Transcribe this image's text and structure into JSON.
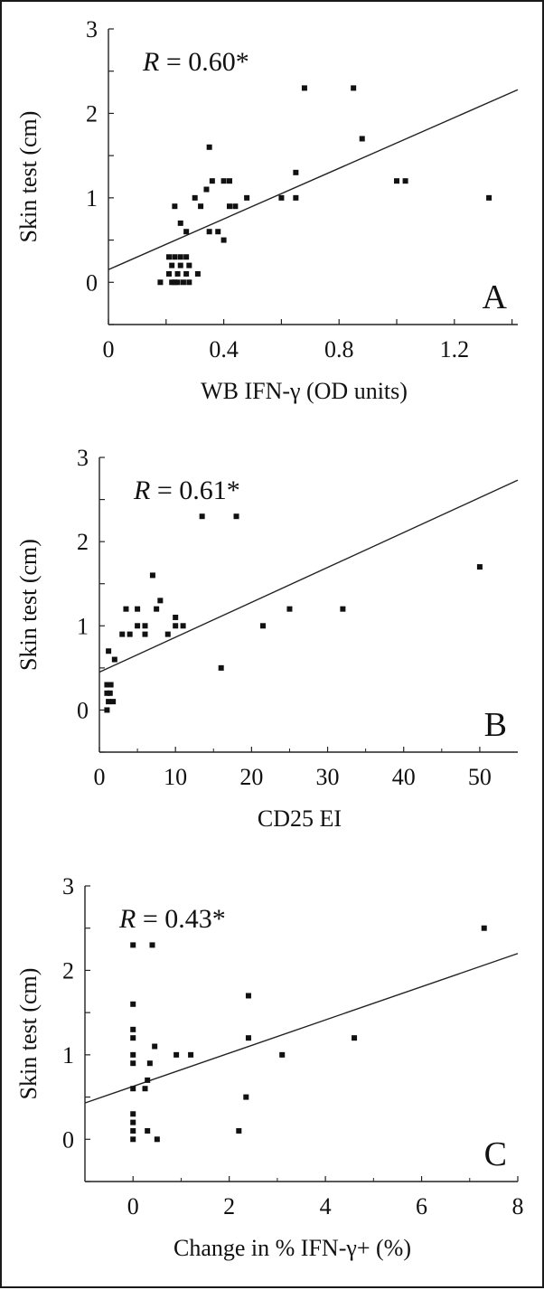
{
  "chart_data": [
    {
      "type": "scatter",
      "panel_label": "A",
      "annotation": {
        "r_symbol": "R",
        "r_value": " = 0.60*"
      },
      "xlabel": "WB IFN-γ (OD units)",
      "ylabel": "Skin test (cm)",
      "xlim": [
        0,
        1.42
      ],
      "ylim": [
        -0.5,
        3
      ],
      "x_ticks": [
        0,
        0.2,
        0.4,
        0.6,
        0.8,
        1.0,
        1.2,
        1.4
      ],
      "x_tick_labels": [
        "0",
        "",
        "0.4",
        "",
        "0.8",
        "",
        "1.2",
        ""
      ],
      "y_ticks": [
        -0.5,
        0,
        0.5,
        1,
        1.5,
        2,
        2.5,
        3
      ],
      "y_tick_labels": [
        "",
        "0",
        "",
        "1",
        "",
        "2",
        "",
        "3"
      ],
      "grid": false,
      "fit_line": {
        "x": [
          0,
          1.42
        ],
        "y": [
          0.15,
          2.28
        ]
      },
      "points": [
        [
          0.18,
          0
        ],
        [
          0.22,
          0
        ],
        [
          0.23,
          0
        ],
        [
          0.24,
          0
        ],
        [
          0.26,
          0
        ],
        [
          0.28,
          0
        ],
        [
          0.21,
          0.1
        ],
        [
          0.24,
          0.1
        ],
        [
          0.27,
          0.1
        ],
        [
          0.31,
          0.1
        ],
        [
          0.22,
          0.2
        ],
        [
          0.25,
          0.2
        ],
        [
          0.28,
          0.2
        ],
        [
          0.21,
          0.3
        ],
        [
          0.23,
          0.3
        ],
        [
          0.25,
          0.3
        ],
        [
          0.27,
          0.3
        ],
        [
          0.25,
          0.7
        ],
        [
          0.27,
          0.6
        ],
        [
          0.23,
          0.9
        ],
        [
          0.3,
          1.0
        ],
        [
          0.32,
          0.9
        ],
        [
          0.34,
          1.1
        ],
        [
          0.35,
          1.6
        ],
        [
          0.36,
          1.2
        ],
        [
          0.35,
          0.6
        ],
        [
          0.38,
          0.6
        ],
        [
          0.4,
          0.5
        ],
        [
          0.4,
          1.2
        ],
        [
          0.42,
          1.2
        ],
        [
          0.42,
          0.9
        ],
        [
          0.44,
          0.9
        ],
        [
          0.48,
          1.0
        ],
        [
          0.6,
          1.0
        ],
        [
          0.65,
          1.0
        ],
        [
          0.65,
          1.3
        ],
        [
          0.68,
          2.3
        ],
        [
          0.85,
          2.3
        ],
        [
          0.88,
          1.7
        ],
        [
          1.0,
          1.2
        ],
        [
          1.03,
          1.2
        ],
        [
          1.32,
          1.0
        ]
      ]
    },
    {
      "type": "scatter",
      "panel_label": "B",
      "annotation": {
        "r_symbol": "R",
        "r_value": " = 0.61*"
      },
      "xlabel": "CD25 EI",
      "ylabel": "Skin test (cm)",
      "xlim": [
        0,
        55
      ],
      "ylim": [
        -0.5,
        3
      ],
      "x_ticks": [
        0,
        10,
        20,
        30,
        40,
        50
      ],
      "x_tick_labels": [
        "0",
        "10",
        "20",
        "30",
        "40",
        "50"
      ],
      "x_minor_ticks": [
        5,
        15,
        25,
        35,
        45
      ],
      "y_ticks": [
        -0.5,
        0,
        0.5,
        1,
        1.5,
        2,
        2.5,
        3
      ],
      "y_tick_labels": [
        "",
        "0",
        "",
        "1",
        "",
        "2",
        "",
        "3"
      ],
      "grid": false,
      "fit_line": {
        "x": [
          0,
          55
        ],
        "y": [
          0.45,
          2.73
        ]
      },
      "points": [
        [
          1,
          0
        ],
        [
          1.2,
          0.1
        ],
        [
          1.8,
          0.1
        ],
        [
          1,
          0.2
        ],
        [
          1.4,
          0.2
        ],
        [
          1,
          0.3
        ],
        [
          1.5,
          0.3
        ],
        [
          1.2,
          0.7
        ],
        [
          2,
          0.6
        ],
        [
          3,
          0.9
        ],
        [
          4,
          0.9
        ],
        [
          3.5,
          1.2
        ],
        [
          5,
          1.0
        ],
        [
          5,
          1.2
        ],
        [
          6,
          0.9
        ],
        [
          6,
          1.0
        ],
        [
          7,
          1.6
        ],
        [
          7.5,
          1.2
        ],
        [
          8,
          1.3
        ],
        [
          9,
          0.9
        ],
        [
          10,
          1.0
        ],
        [
          10,
          1.1
        ],
        [
          11,
          1.0
        ],
        [
          13.5,
          2.3
        ],
        [
          16,
          0.5
        ],
        [
          18,
          2.3
        ],
        [
          21.5,
          1.0
        ],
        [
          25,
          1.2
        ],
        [
          32,
          1.2
        ],
        [
          50,
          1.7
        ]
      ]
    },
    {
      "type": "scatter",
      "panel_label": "C",
      "annotation": {
        "r_symbol": "R",
        "r_value": " = 0.43*"
      },
      "xlabel": "Change in % IFN-γ+ (%)",
      "ylabel": "Skin test (cm)",
      "xlim": [
        -1,
        8
      ],
      "ylim": [
        -0.5,
        3
      ],
      "x_ticks": [
        0,
        2,
        4,
        6,
        8
      ],
      "x_tick_labels": [
        "0",
        "2",
        "4",
        "6",
        "8"
      ],
      "x_minor_ticks": [
        -1,
        1,
        3,
        5,
        7
      ],
      "y_ticks": [
        -0.5,
        0,
        0.5,
        1,
        1.5,
        2,
        2.5,
        3
      ],
      "y_tick_labels": [
        "",
        "0",
        "",
        "1",
        "",
        "2",
        "",
        "3"
      ],
      "grid": false,
      "fit_line": {
        "x": [
          -1,
          8
        ],
        "y": [
          0.43,
          2.2
        ]
      },
      "points": [
        [
          0,
          0
        ],
        [
          0,
          0.1
        ],
        [
          0,
          0.2
        ],
        [
          0,
          0.3
        ],
        [
          0,
          0.6
        ],
        [
          0,
          0.9
        ],
        [
          0,
          1.0
        ],
        [
          0,
          1.2
        ],
        [
          0,
          1.3
        ],
        [
          0,
          1.6
        ],
        [
          0,
          2.3
        ],
        [
          0.4,
          2.3
        ],
        [
          0.3,
          0.1
        ],
        [
          0.5,
          0
        ],
        [
          0.25,
          0.6
        ],
        [
          0.3,
          0.7
        ],
        [
          0.35,
          0.9
        ],
        [
          0.45,
          1.1
        ],
        [
          0.9,
          1.0
        ],
        [
          1.2,
          1.0
        ],
        [
          2.2,
          0.1
        ],
        [
          2.35,
          0.5
        ],
        [
          2.4,
          1.2
        ],
        [
          2.4,
          1.7
        ],
        [
          3.1,
          1.0
        ],
        [
          4.6,
          1.2
        ],
        [
          7.3,
          2.5
        ]
      ]
    }
  ]
}
